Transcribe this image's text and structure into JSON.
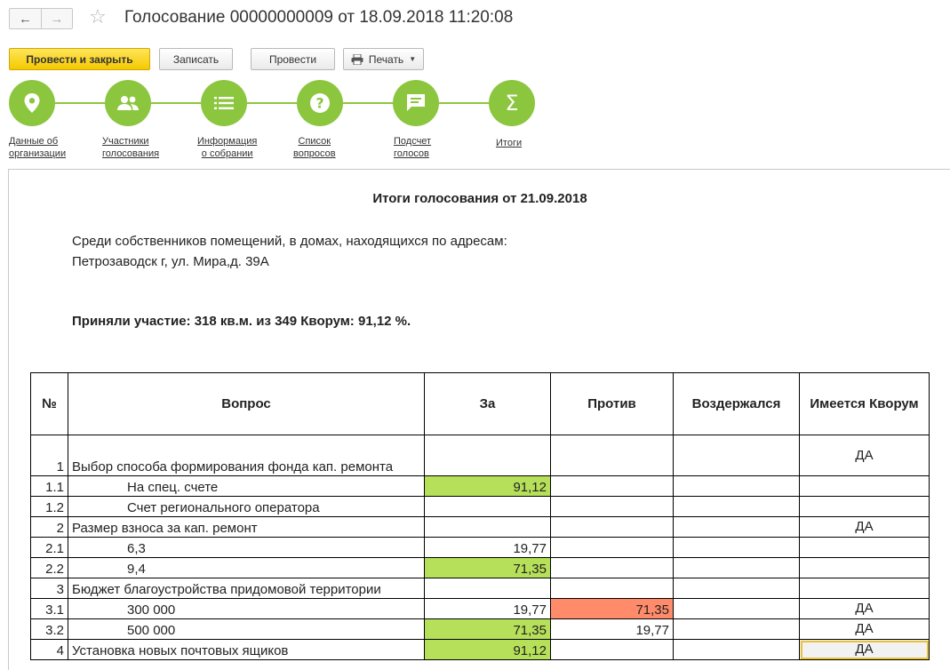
{
  "window": {
    "title": "Голосование 00000000009 от 18.09.2018 11:20:08"
  },
  "toolbar": {
    "post_and_close": "Провести и закрыть",
    "save": "Записать",
    "post": "Провести",
    "print": "Печать"
  },
  "steps": [
    {
      "line1": "Данные об",
      "line2": "организации",
      "icon": "map-pin-icon"
    },
    {
      "line1": "Участники",
      "line2": "голосования",
      "icon": "people-icon"
    },
    {
      "line1": "Информация",
      "line2": "о собрании",
      "icon": "list-icon"
    },
    {
      "line1": "Список",
      "line2": "вопросов",
      "icon": "question-icon"
    },
    {
      "line1": "Подсчет",
      "line2": "голосов",
      "icon": "chat-icon"
    },
    {
      "line1": "Итоги",
      "line2": "",
      "icon": "sigma-icon"
    }
  ],
  "colors": {
    "accent_yellow": "#f5c900",
    "step_green": "#8cc63f",
    "cell_green": "#b7e05a",
    "cell_red": "#ff8b6a"
  },
  "report": {
    "title": "Итоги голосования от 21.09.2018",
    "intro_line1": "Среди собственников помещений, в домах, находящихся по адресам:",
    "intro_line2": "Петрозаводск г, ул. Мира,д. 39А",
    "summary": "Приняли участие: 318 кв.м. из 349 Кворум: 91,12 %.",
    "table": {
      "headers": [
        "№",
        "Вопрос",
        "За",
        "Против",
        "Воздержался",
        "Имеется Кворум"
      ],
      "rows": [
        {
          "num": "1",
          "question": "Выбор способа формирования фонда кап. ремонта",
          "za": "",
          "protiv": "",
          "vozd": "",
          "kvorum": "ДА"
        },
        {
          "num": "1.1",
          "question": "На спец. счете",
          "za": "91,12",
          "protiv": "",
          "vozd": "",
          "kvorum": ""
        },
        {
          "num": "1.2",
          "question": "Счет регионального оператора",
          "za": "",
          "protiv": "",
          "vozd": "",
          "kvorum": ""
        },
        {
          "num": "2",
          "question": "Размер взноса за кап. ремонт",
          "za": "",
          "protiv": "",
          "vozd": "",
          "kvorum": "ДА"
        },
        {
          "num": "2.1",
          "question": "6,3",
          "za": "19,77",
          "protiv": "",
          "vozd": "",
          "kvorum": ""
        },
        {
          "num": "2.2",
          "question": "9,4",
          "za": "71,35",
          "protiv": "",
          "vozd": "",
          "kvorum": ""
        },
        {
          "num": "3",
          "question": "Бюджет благоустройства придомовой территории",
          "za": "",
          "protiv": "",
          "vozd": "",
          "kvorum": ""
        },
        {
          "num": "3.1",
          "question": "300 000",
          "za": "19,77",
          "protiv": "71,35",
          "vozd": "",
          "kvorum": "ДА"
        },
        {
          "num": "3.2",
          "question": "500 000",
          "za": "71,35",
          "protiv": "19,77",
          "vozd": "",
          "kvorum": "ДА"
        },
        {
          "num": "4",
          "question": "Установка новых почтовых ящиков",
          "za": "91,12",
          "protiv": "",
          "vozd": "",
          "kvorum": "ДА"
        }
      ]
    }
  }
}
